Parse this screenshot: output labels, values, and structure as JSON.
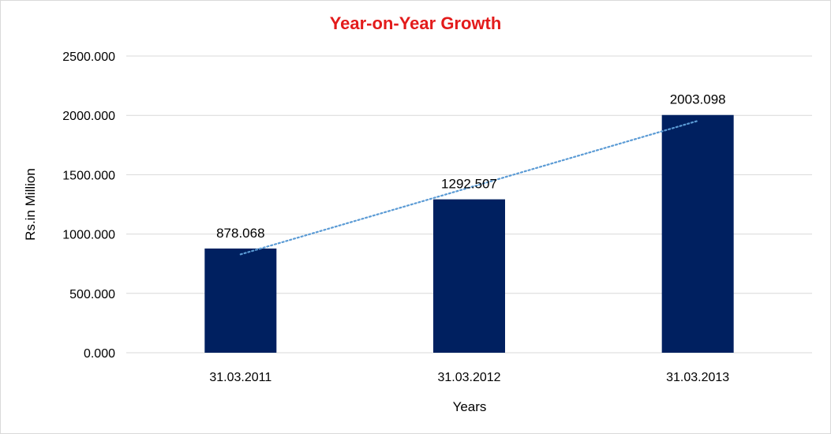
{
  "chart_data": {
    "type": "bar",
    "title": "Year-on-Year Growth",
    "xlabel": "Years",
    "ylabel": "Rs.in Million",
    "categories": [
      "31.03.2011",
      "31.03.2012",
      "31.03.2013"
    ],
    "values": [
      878.068,
      1292.507,
      2003.098
    ],
    "data_labels": [
      "878.068",
      "1292.507",
      "2003.098"
    ],
    "ylim": [
      0,
      2500
    ],
    "y_ticks": [
      0,
      500,
      1000,
      1500,
      2000,
      2500
    ],
    "y_tick_labels": [
      "0.000",
      "500.000",
      "1000.000",
      "1500.000",
      "2000.000",
      "2500.000"
    ],
    "trendline": {
      "type": "linear",
      "style": "dotted"
    },
    "grid": true,
    "legend": "none",
    "colors": {
      "bar": "#002060",
      "trendline": "#5b9bd5",
      "grid": "#d9d9d9",
      "title": "#e31b1b"
    }
  }
}
